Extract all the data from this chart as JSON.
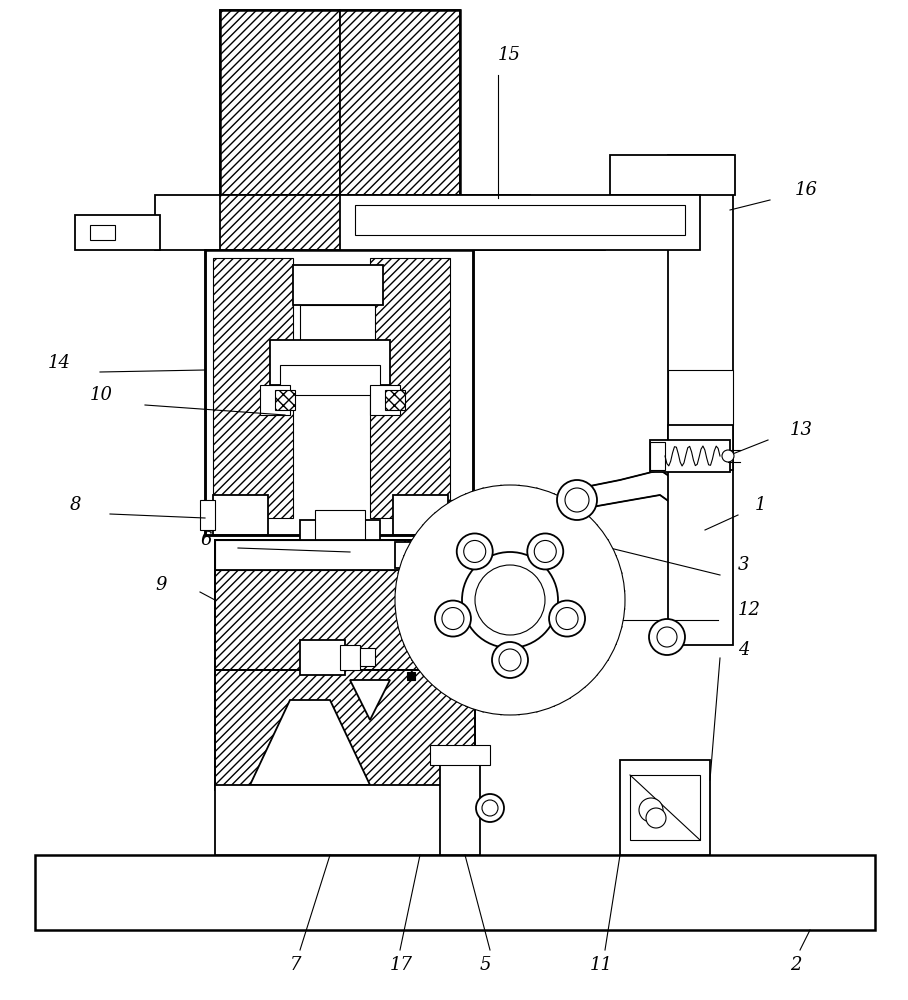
{
  "bg_color": "#ffffff",
  "line_color": "#000000",
  "figsize": [
    9.08,
    10.0
  ],
  "dpi": 100,
  "label_fontsize": 13
}
